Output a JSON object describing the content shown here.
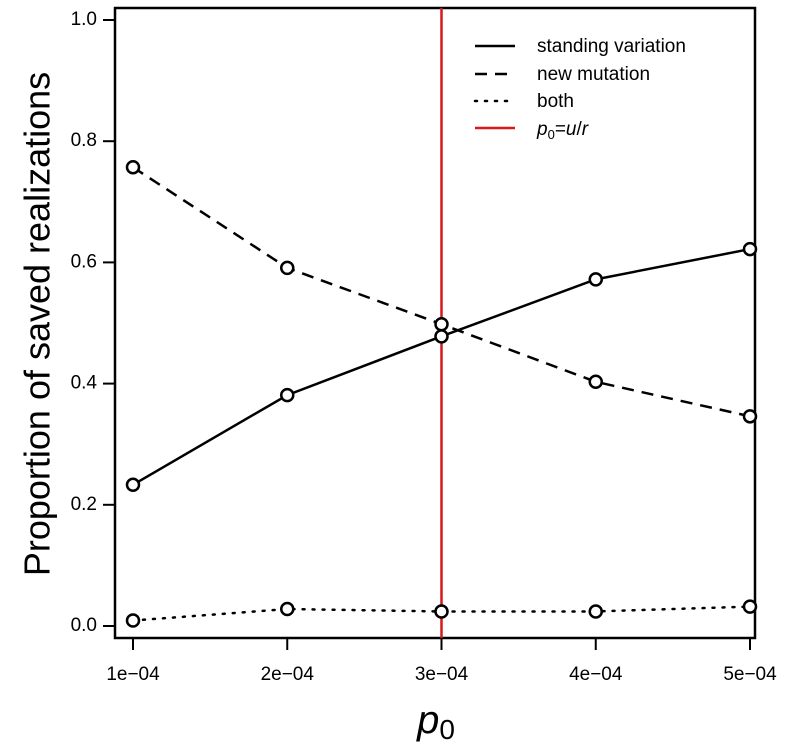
{
  "chart_data": {
    "type": "line",
    "xlabel": "p",
    "xlabel_subscript": "0",
    "ylabel": "Proportion of saved realizations",
    "x": [
      0.0001,
      0.0002,
      0.0003,
      0.0004,
      0.0005
    ],
    "x_tick_labels": [
      "1e−04",
      "2e−04",
      "3e−04",
      "4e−04",
      "5e−04"
    ],
    "y_ticks": [
      0.0,
      0.2,
      0.4,
      0.6,
      0.8,
      1.0
    ],
    "y_tick_labels": [
      "0.0",
      "0.2",
      "0.4",
      "0.6",
      "0.8",
      "1.0"
    ],
    "xlim": [
      0.0001,
      0.0005
    ],
    "ylim": [
      0.0,
      1.0
    ],
    "grid": false,
    "legend_position": "top-right",
    "series": [
      {
        "name": "standing variation",
        "style": "solid",
        "values": [
          0.233,
          0.381,
          0.478,
          0.572,
          0.622
        ]
      },
      {
        "name": "new mutation",
        "style": "dashed",
        "values": [
          0.757,
          0.591,
          0.498,
          0.403,
          0.346
        ]
      },
      {
        "name": "both",
        "style": "dotted",
        "values": [
          0.009,
          0.028,
          0.024,
          0.024,
          0.032
        ]
      }
    ],
    "vline": {
      "x": 0.0003,
      "color": "#d7191c",
      "label_p": "p",
      "label_sub": "0",
      "label_rest": "=",
      "label_u": "u",
      "label_slash": "/",
      "label_r": "r"
    }
  }
}
